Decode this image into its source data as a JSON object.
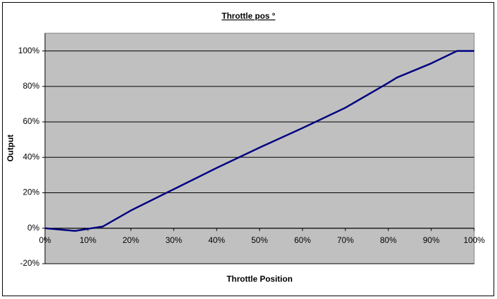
{
  "chart_data": {
    "type": "line",
    "title": "Throttle pos °",
    "x_label": "Throttle Position",
    "y_label": "Output",
    "x": [
      0,
      7,
      13.5,
      20,
      30,
      40,
      50,
      60,
      70,
      80,
      82,
      90,
      96,
      100
    ],
    "values": [
      0,
      -1.5,
      1,
      10,
      22,
      34,
      45.5,
      56.5,
      68,
      82,
      85,
      93,
      100,
      100
    ],
    "color": "#000080",
    "xlim": [
      0,
      100
    ],
    "xticks": [
      {
        "value": 0,
        "label": "0%"
      },
      {
        "value": 10,
        "label": "10%"
      },
      {
        "value": 20,
        "label": "20%"
      },
      {
        "value": 30,
        "label": "30%"
      },
      {
        "value": 40,
        "label": "40%"
      },
      {
        "value": 50,
        "label": "50%"
      },
      {
        "value": 60,
        "label": "60%"
      },
      {
        "value": 70,
        "label": "70%"
      },
      {
        "value": 80,
        "label": "80%"
      },
      {
        "value": 90,
        "label": "90%"
      },
      {
        "value": 100,
        "label": "100%"
      }
    ],
    "ylim": [
      -20,
      110
    ],
    "yticks": [
      {
        "value": -20,
        "label": "-20%"
      },
      {
        "value": 0,
        "label": "0%"
      },
      {
        "value": 20,
        "label": "20%"
      },
      {
        "value": 40,
        "label": "40%"
      },
      {
        "value": 60,
        "label": "60%"
      },
      {
        "value": 80,
        "label": "80%"
      },
      {
        "value": 100,
        "label": "100%"
      }
    ],
    "grid": true,
    "plot_background": "#c0c0c0"
  }
}
